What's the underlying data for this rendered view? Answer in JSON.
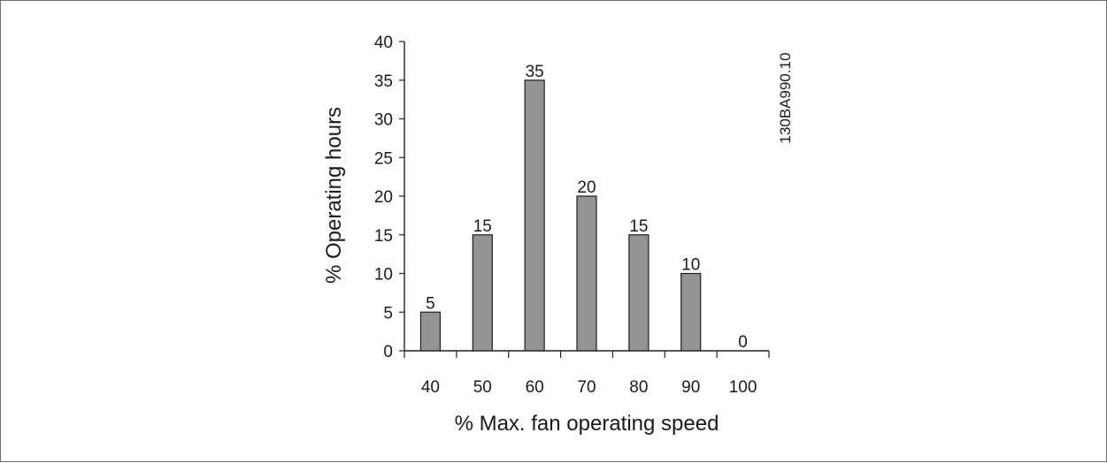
{
  "figure_id": "130BA990.10",
  "chart_data": {
    "type": "bar",
    "categories": [
      "40",
      "50",
      "60",
      "70",
      "80",
      "90",
      "100"
    ],
    "values": [
      5,
      15,
      35,
      20,
      15,
      10,
      0
    ],
    "data_labels": [
      "5",
      "15",
      "35",
      "20",
      "15",
      "10",
      "0"
    ],
    "xlabel": "% Max. fan operating speed",
    "ylabel": "% Operating hours",
    "ylim": [
      0,
      40
    ],
    "yticks": [
      "0",
      "5",
      "10",
      "15",
      "20",
      "25",
      "30",
      "35",
      "40"
    ],
    "bar_color": "#939393",
    "grid": false,
    "legend": "none"
  }
}
